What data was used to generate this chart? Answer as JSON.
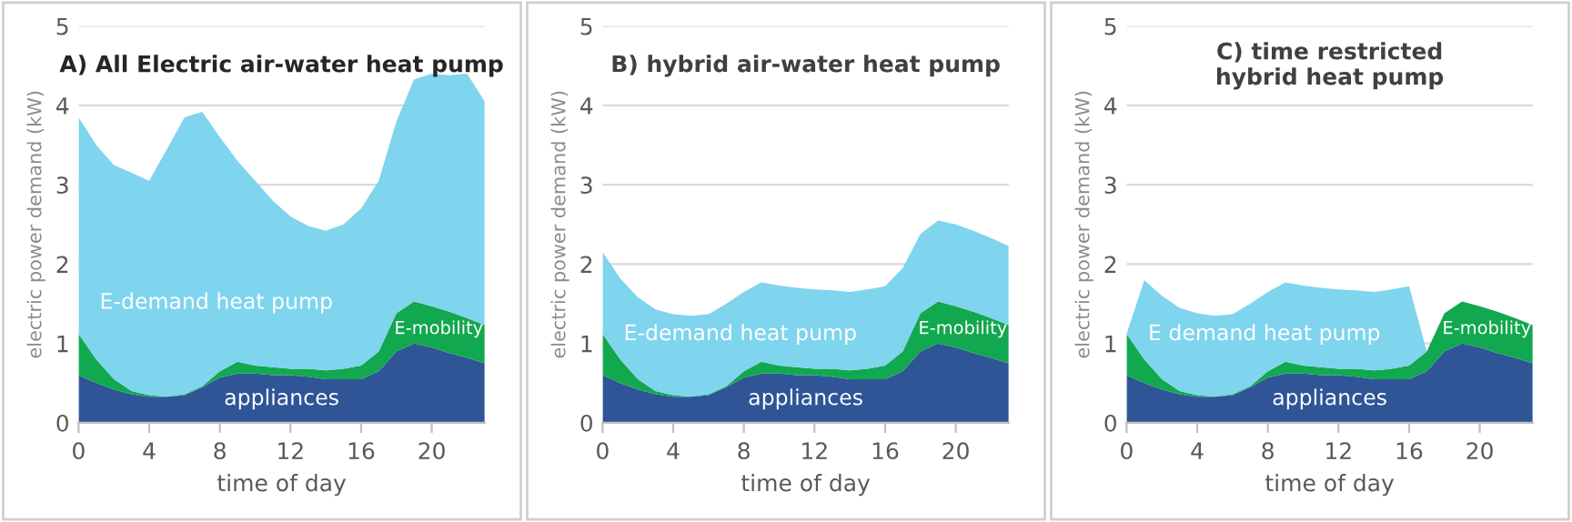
{
  "chart_data": [
    {
      "type": "area",
      "stacked": true,
      "title": "A) All Electric air-water heat pump",
      "xlabel": "time of day",
      "ylabel": "electric power demand (kW)",
      "x": [
        0,
        1,
        2,
        3,
        4,
        5,
        6,
        7,
        8,
        9,
        10,
        11,
        12,
        13,
        14,
        15,
        16,
        17,
        18,
        19,
        20,
        21,
        22,
        23
      ],
      "xlim": [
        0,
        23
      ],
      "xticks": [
        0,
        4,
        8,
        12,
        16,
        20
      ],
      "ylim": [
        0,
        5
      ],
      "yticks": [
        0,
        1,
        2,
        3,
        4,
        5
      ],
      "grid": "y",
      "series": [
        {
          "name": "appliances",
          "color": "#2f5597",
          "values": [
            0.6,
            0.5,
            0.42,
            0.36,
            0.33,
            0.33,
            0.35,
            0.45,
            0.57,
            0.62,
            0.62,
            0.6,
            0.6,
            0.58,
            0.55,
            0.55,
            0.55,
            0.65,
            0.9,
            1.0,
            0.95,
            0.88,
            0.82,
            0.75
          ]
        },
        {
          "name": "E-mobility",
          "color": "#11a84f",
          "values": [
            0.52,
            0.3,
            0.13,
            0.04,
            0.02,
            0,
            0.01,
            0.01,
            0.08,
            0.15,
            0.1,
            0.1,
            0.08,
            0.1,
            0.11,
            0.13,
            0.17,
            0.25,
            0.48,
            0.53,
            0.52,
            0.52,
            0.5,
            0.48
          ]
        },
        {
          "name": "E-demand heat pump",
          "color": "#7fd4ee",
          "values": [
            2.73,
            2.7,
            2.7,
            2.75,
            2.7,
            3.12,
            3.49,
            3.46,
            2.95,
            2.53,
            2.33,
            2.1,
            1.92,
            1.8,
            1.76,
            1.82,
            1.98,
            2.15,
            2.42,
            2.8,
            2.93,
            2.98,
            3.08,
            2.82
          ]
        }
      ]
    },
    {
      "type": "area",
      "stacked": true,
      "title": "B) hybrid air-water heat pump",
      "xlabel": "time of day",
      "ylabel": "electric power demand (kW)",
      "x": [
        0,
        1,
        2,
        3,
        4,
        5,
        6,
        7,
        8,
        9,
        10,
        11,
        12,
        13,
        14,
        15,
        16,
        17,
        18,
        19,
        20,
        21,
        22,
        23
      ],
      "xlim": [
        0,
        23
      ],
      "xticks": [
        0,
        4,
        8,
        12,
        16,
        20
      ],
      "ylim": [
        0,
        5
      ],
      "yticks": [
        0,
        1,
        2,
        3,
        4,
        5
      ],
      "grid": "y",
      "series": [
        {
          "name": "appliances",
          "color": "#2f5597",
          "values": [
            0.6,
            0.5,
            0.42,
            0.36,
            0.33,
            0.33,
            0.35,
            0.45,
            0.57,
            0.62,
            0.62,
            0.6,
            0.6,
            0.58,
            0.55,
            0.55,
            0.55,
            0.65,
            0.9,
            1.0,
            0.95,
            0.88,
            0.82,
            0.75
          ]
        },
        {
          "name": "E-mobility",
          "color": "#11a84f",
          "values": [
            0.52,
            0.3,
            0.13,
            0.04,
            0.02,
            0,
            0.01,
            0.01,
            0.08,
            0.15,
            0.1,
            0.1,
            0.08,
            0.1,
            0.11,
            0.13,
            0.17,
            0.25,
            0.48,
            0.53,
            0.52,
            0.52,
            0.5,
            0.48
          ]
        },
        {
          "name": "E-demand heat pump",
          "color": "#7fd4ee",
          "values": [
            1.03,
            1.02,
            1.03,
            1.03,
            1.02,
            1.02,
            1.01,
            1.04,
            1.0,
            1.0,
            1.01,
            1.0,
            1.0,
            0.99,
            0.99,
            1.0,
            1.0,
            1.05,
            1.0,
            1.02,
            1.03,
            1.02,
            1.01,
            1.0
          ]
        }
      ]
    },
    {
      "type": "area",
      "stacked": true,
      "title": "C) time restricted\nhybrid heat pump",
      "xlabel": "time of day",
      "ylabel": "electric power demand (kW)",
      "x": [
        0,
        1,
        2,
        3,
        4,
        5,
        6,
        7,
        8,
        9,
        10,
        11,
        12,
        13,
        14,
        15,
        16,
        17,
        18,
        19,
        20,
        21,
        22,
        23
      ],
      "xlim": [
        0,
        23
      ],
      "xticks": [
        0,
        4,
        8,
        12,
        16,
        20
      ],
      "ylim": [
        0,
        5
      ],
      "yticks": [
        0,
        1,
        2,
        3,
        4,
        5
      ],
      "grid": "y",
      "series": [
        {
          "name": "appliances",
          "color": "#2f5597",
          "values": [
            0.6,
            0.5,
            0.42,
            0.36,
            0.33,
            0.33,
            0.35,
            0.45,
            0.57,
            0.62,
            0.62,
            0.6,
            0.6,
            0.58,
            0.55,
            0.55,
            0.55,
            0.65,
            0.9,
            1.0,
            0.95,
            0.88,
            0.82,
            0.75
          ]
        },
        {
          "name": "E-mobility",
          "color": "#11a84f",
          "values": [
            0.52,
            0.3,
            0.13,
            0.04,
            0.02,
            0,
            0.01,
            0.01,
            0.08,
            0.15,
            0.1,
            0.1,
            0.08,
            0.1,
            0.11,
            0.13,
            0.17,
            0.25,
            0.48,
            0.53,
            0.52,
            0.52,
            0.5,
            0.48
          ]
        },
        {
          "name": "E demand heat pump",
          "color": "#7fd4ee",
          "values": [
            0,
            1.0,
            1.05,
            1.05,
            1.03,
            1.02,
            1.01,
            1.04,
            1.0,
            1.0,
            1.01,
            1.0,
            1.0,
            0.99,
            0.99,
            1.0,
            1.0,
            0,
            0,
            0,
            0,
            0,
            0,
            0
          ]
        }
      ]
    }
  ]
}
